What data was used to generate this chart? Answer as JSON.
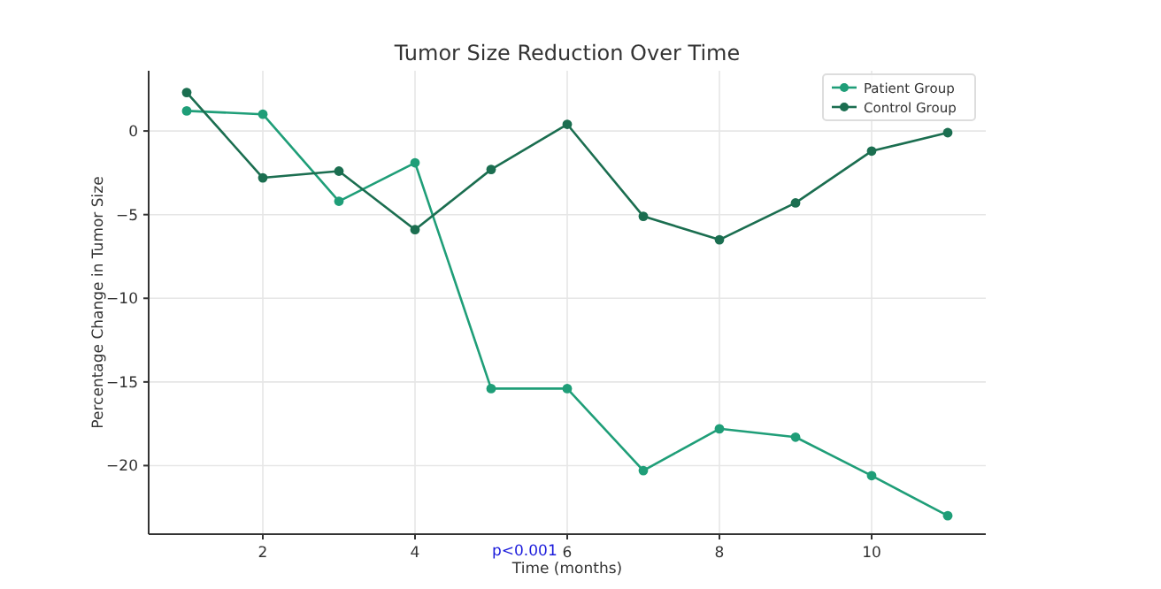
{
  "chart_data": {
    "type": "line",
    "title": "Tumor Size Reduction Over Time",
    "xlabel": "Time (months)",
    "ylabel": "Percentage Change in Tumor Size",
    "x": [
      1,
      2,
      3,
      4,
      5,
      6,
      7,
      8,
      9,
      10,
      11
    ],
    "series": [
      {
        "name": "Patient Group",
        "color": "#1f9e78",
        "values": [
          1.2,
          1.0,
          -4.2,
          -1.9,
          -15.4,
          -15.4,
          -20.3,
          -17.8,
          -18.3,
          -20.6,
          -23.0
        ]
      },
      {
        "name": "Control Group",
        "color": "#1b6e50",
        "values": [
          2.3,
          -2.8,
          -2.4,
          -5.9,
          -2.3,
          0.4,
          -5.1,
          -6.5,
          -4.3,
          -1.2,
          -0.1
        ]
      }
    ],
    "xlim": [
      0.5,
      11.5
    ],
    "xticks": [
      2,
      4,
      6,
      8,
      10
    ],
    "ylim": [
      -24.1,
      3.6
    ],
    "yticks": [
      -20,
      -15,
      -10,
      -5,
      0
    ],
    "grid": true,
    "legend": "top right",
    "marker": "circle",
    "line_style": "solid",
    "annotations": [
      "p<0.001"
    ]
  }
}
